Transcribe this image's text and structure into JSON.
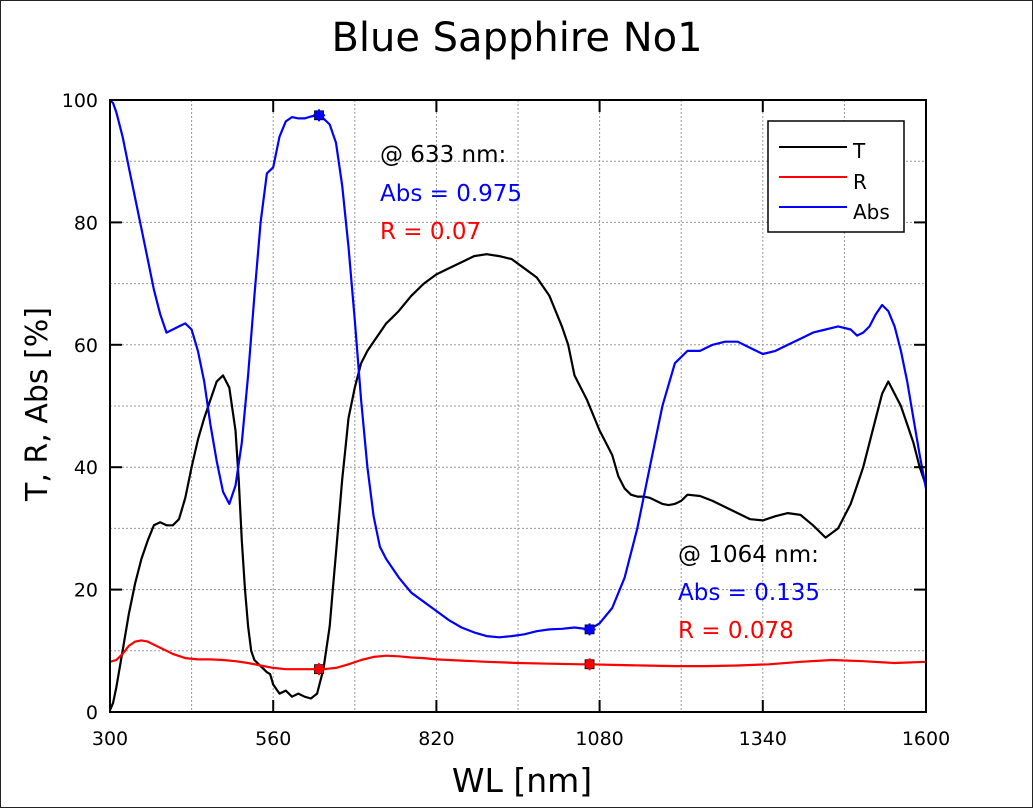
{
  "chart_data": {
    "type": "line",
    "title": "Blue Sapphire No1",
    "xlabel": "WL [nm]",
    "ylabel": "T, R, Abs [%]",
    "xlim": [
      300,
      1600
    ],
    "ylim": [
      0,
      100
    ],
    "x_ticks": [
      300,
      560,
      820,
      1080,
      1340,
      1600
    ],
    "y_ticks": [
      0,
      20,
      40,
      60,
      80,
      100
    ],
    "grid": true,
    "legend_position": "top-right",
    "series": [
      {
        "name": "T",
        "color": "#000000",
        "x": [
          300,
          305,
          310,
          320,
          330,
          340,
          350,
          360,
          370,
          380,
          390,
          400,
          410,
          420,
          430,
          440,
          450,
          460,
          470,
          480,
          490,
          500,
          505,
          510,
          515,
          520,
          525,
          530,
          535,
          540,
          545,
          550,
          555,
          560,
          570,
          580,
          590,
          600,
          610,
          620,
          630,
          640,
          650,
          655,
          660,
          665,
          670,
          675,
          680,
          690,
          700,
          710,
          720,
          730,
          740,
          750,
          760,
          780,
          800,
          820,
          840,
          860,
          880,
          900,
          920,
          940,
          960,
          980,
          1000,
          1020,
          1030,
          1040,
          1060,
          1080,
          1100,
          1110,
          1120,
          1130,
          1140,
          1150,
          1160,
          1170,
          1180,
          1190,
          1200,
          1210,
          1220,
          1240,
          1260,
          1280,
          1300,
          1320,
          1340,
          1360,
          1380,
          1400,
          1420,
          1440,
          1460,
          1480,
          1490,
          1500,
          1510,
          1520,
          1530,
          1540,
          1550,
          1560,
          1570,
          1580,
          1590,
          1600
        ],
        "values": [
          0.3,
          1.5,
          4,
          10,
          16,
          21,
          25,
          28,
          30.5,
          31,
          30.5,
          30.5,
          31.5,
          35,
          40,
          44.5,
          48,
          51,
          54,
          55,
          53,
          46,
          38,
          28,
          20,
          14,
          10,
          8.5,
          8,
          7.5,
          7,
          6.5,
          6.2,
          4.5,
          3,
          3.5,
          2.5,
          3,
          2.5,
          2.2,
          3,
          7,
          14,
          20,
          26,
          32,
          38,
          43,
          48,
          53,
          57,
          59,
          60.5,
          62,
          63.5,
          64.5,
          65.5,
          68,
          70,
          71.5,
          72.5,
          73.5,
          74.5,
          74.8,
          74.5,
          74,
          72.5,
          71,
          68,
          63,
          60,
          55,
          51,
          46,
          42,
          38.5,
          36.5,
          35.5,
          35.2,
          35.2,
          35,
          34.5,
          34,
          33.8,
          34,
          34.5,
          35.5,
          35.3,
          34.5,
          33.5,
          32.5,
          31.5,
          31.3,
          32,
          32.5,
          32.2,
          30.5,
          28.5,
          30,
          34,
          37,
          40,
          44,
          48,
          52,
          54,
          52,
          50,
          47,
          44,
          40,
          37
        ],
        "marker": []
      },
      {
        "name": "R",
        "color": "#ff0000",
        "x": [
          300,
          310,
          320,
          330,
          340,
          350,
          360,
          370,
          380,
          390,
          400,
          420,
          440,
          460,
          480,
          500,
          520,
          540,
          560,
          580,
          600,
          620,
          640,
          660,
          680,
          700,
          720,
          740,
          760,
          780,
          800,
          820,
          840,
          860,
          880,
          900,
          950,
          1000,
          1050,
          1064,
          1100,
          1150,
          1200,
          1250,
          1300,
          1350,
          1400,
          1450,
          1500,
          1550,
          1600
        ],
        "values": [
          8.2,
          8.5,
          9.5,
          10.8,
          11.5,
          11.7,
          11.5,
          11,
          10.5,
          10,
          9.5,
          8.8,
          8.6,
          8.6,
          8.5,
          8.3,
          8.0,
          7.6,
          7.2,
          7.0,
          7.0,
          7.0,
          7.0,
          7.2,
          7.8,
          8.5,
          9.0,
          9.2,
          9.1,
          8.9,
          8.8,
          8.6,
          8.5,
          8.4,
          8.3,
          8.2,
          8.0,
          7.9,
          7.8,
          7.8,
          7.7,
          7.6,
          7.5,
          7.5,
          7.6,
          7.8,
          8.2,
          8.5,
          8.3,
          8.0,
          8.2
        ],
        "marker": [
          {
            "x": 633,
            "y": 7.0
          },
          {
            "x": 1064,
            "y": 7.8
          }
        ]
      },
      {
        "name": "Abs",
        "color": "#0000ff",
        "x": [
          300,
          305,
          310,
          320,
          330,
          340,
          350,
          360,
          370,
          380,
          390,
          400,
          410,
          420,
          430,
          440,
          450,
          460,
          470,
          480,
          490,
          500,
          510,
          520,
          530,
          540,
          550,
          560,
          570,
          580,
          590,
          600,
          610,
          620,
          630,
          640,
          650,
          660,
          670,
          680,
          690,
          700,
          710,
          720,
          730,
          740,
          760,
          780,
          800,
          820,
          840,
          860,
          880,
          900,
          920,
          940,
          960,
          980,
          1000,
          1020,
          1040,
          1064,
          1080,
          1100,
          1120,
          1140,
          1160,
          1180,
          1200,
          1220,
          1240,
          1260,
          1280,
          1300,
          1320,
          1340,
          1360,
          1380,
          1400,
          1420,
          1440,
          1460,
          1480,
          1490,
          1500,
          1510,
          1520,
          1530,
          1540,
          1550,
          1560,
          1570,
          1580,
          1590,
          1600
        ],
        "values": [
          100,
          99.5,
          98,
          94,
          89,
          84,
          79,
          74,
          69,
          65,
          62,
          62.5,
          63,
          63.5,
          62.5,
          59,
          54,
          47,
          41,
          36,
          34,
          37,
          44,
          55,
          68,
          80,
          88,
          89,
          94,
          96.5,
          97.2,
          97,
          97,
          97.3,
          97.5,
          97,
          96,
          93,
          86,
          76,
          64,
          51,
          40,
          32,
          27,
          25,
          22,
          19.5,
          18,
          16.5,
          15,
          13.8,
          13.0,
          12.4,
          12.2,
          12.4,
          12.7,
          13.2,
          13.5,
          13.6,
          13.8,
          13.5,
          14.5,
          17,
          22,
          30,
          40,
          50,
          57,
          59,
          59,
          60,
          60.5,
          60.5,
          59.5,
          58.5,
          59,
          60,
          61,
          62,
          62.5,
          63,
          62.5,
          61.5,
          62,
          63,
          65,
          66.5,
          65.5,
          63,
          59,
          54,
          48,
          42,
          36.5
        ],
        "marker": [
          {
            "x": 633,
            "y": 97.5
          },
          {
            "x": 1064,
            "y": 13.5
          }
        ]
      }
    ],
    "annotations": [
      {
        "x": 633,
        "lines": [
          {
            "text": "@ 633 nm:",
            "color": "#000000"
          },
          {
            "text": "Abs = 0.975",
            "color": "#0000ff"
          },
          {
            "text": "R = 0.07",
            "color": "#ff0000"
          }
        ]
      },
      {
        "x": 1064,
        "lines": [
          {
            "text": "@ 1064 nm:",
            "color": "#000000"
          },
          {
            "text": "Abs = 0.135",
            "color": "#0000ff"
          },
          {
            "text": "R = 0.078",
            "color": "#ff0000"
          }
        ]
      }
    ]
  }
}
